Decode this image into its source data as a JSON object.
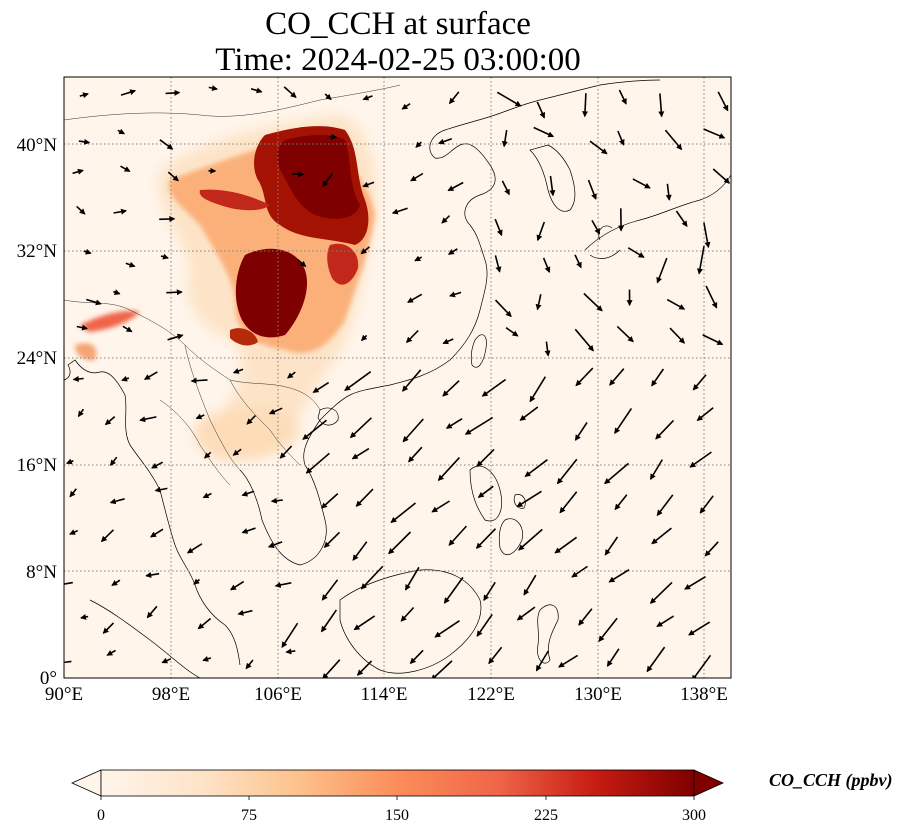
{
  "title": {
    "line1": "CO_CCH at surface",
    "line2": "Time: 2024-02-25 03:00:00"
  },
  "map": {
    "lon_range": [
      90,
      140
    ],
    "lat_range": [
      0,
      45
    ],
    "x_ticks": [
      "90°E",
      "98°E",
      "106°E",
      "114°E",
      "122°E",
      "130°E",
      "138°E"
    ],
    "y_ticks": [
      "0°",
      "8°N",
      "16°N",
      "24°N",
      "32°N",
      "40°N"
    ],
    "gridlines": true,
    "features": [
      "coastlines",
      "country borders",
      "wind vectors"
    ],
    "background_color": "#fff5eb"
  },
  "colorbar": {
    "label": "CO_CCH (ppbv)",
    "ticks": [
      "0",
      "75",
      "150",
      "225",
      "300"
    ],
    "range": [
      0,
      300
    ],
    "colormap": "OrRd",
    "extend": "both",
    "colors": [
      "#fff5eb",
      "#fdd9b4",
      "#fda762",
      "#f5782a",
      "#d84801",
      "#a31203",
      "#7f0000"
    ]
  }
}
